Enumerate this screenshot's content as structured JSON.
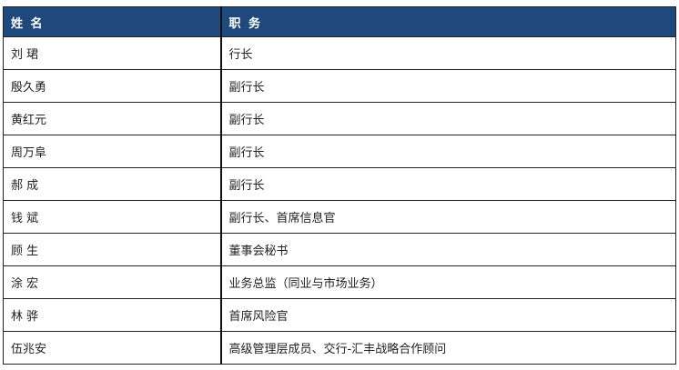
{
  "header": {
    "name": "姓 名",
    "position": "职 务"
  },
  "header_color": "#1f497d",
  "rows": [
    {
      "name": "刘 珺",
      "position": "行长"
    },
    {
      "name": "殷久勇",
      "position": "副行长"
    },
    {
      "name": "黄红元",
      "position": "副行长"
    },
    {
      "name": "周万阜",
      "position": "副行长"
    },
    {
      "name": "郝 成",
      "position": "副行长"
    },
    {
      "name": "钱 斌",
      "position": "副行长、首席信息官"
    },
    {
      "name": "顾 生",
      "position": "董事会秘书"
    },
    {
      "name": "涂 宏",
      "position": "业务总监（同业与市场业务）"
    },
    {
      "name": "林 骅",
      "position": "首席风险官"
    },
    {
      "name": "伍兆安",
      "position": "高级管理层成员、交行-汇丰战略合作顾问"
    }
  ]
}
